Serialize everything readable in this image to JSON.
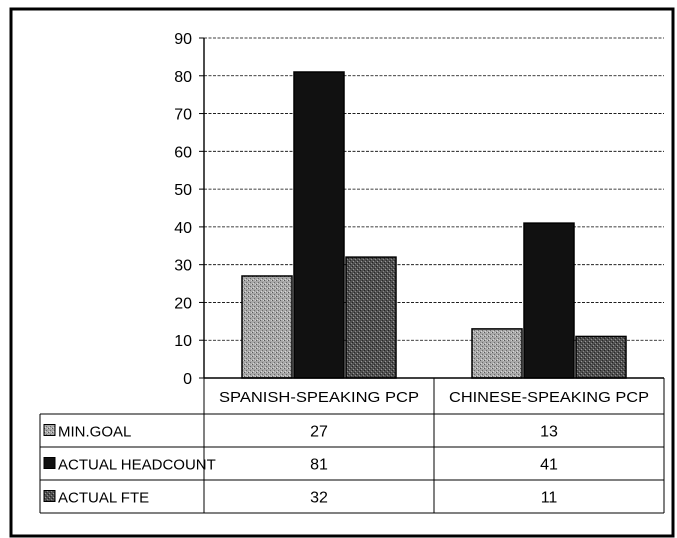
{
  "chart_data": {
    "type": "bar",
    "title": "",
    "xlabel": "",
    "ylabel": "",
    "categories": [
      "SPANISH-SPEAKING PCP",
      "CHINESE-SPEAKING PCP"
    ],
    "series": [
      {
        "name": "MIN.GOAL",
        "values": [
          27,
          13
        ],
        "color": "#9a9a9a",
        "pattern": "light-speckle"
      },
      {
        "name": "ACTUAL HEADCOUNT",
        "values": [
          81,
          41
        ],
        "color": "#111111",
        "pattern": "solid"
      },
      {
        "name": "ACTUAL FTE",
        "values": [
          32,
          11
        ],
        "color": "#5a5a5a",
        "pattern": "dark-speckle"
      }
    ],
    "ylim": [
      0,
      90
    ],
    "yticks": [
      "0",
      "10",
      "20",
      "30",
      "40",
      "50",
      "60",
      "70",
      "80",
      "90"
    ],
    "grid": true,
    "legend": "data-table-left",
    "data_table": [
      {
        "label": "MIN.GOAL",
        "cells": [
          "27",
          "13"
        ]
      },
      {
        "label": "ACTUAL HEADCOUNT",
        "cells": [
          "81",
          "41"
        ]
      },
      {
        "label": "ACTUAL FTE",
        "cells": [
          "32",
          "11"
        ]
      }
    ]
  }
}
